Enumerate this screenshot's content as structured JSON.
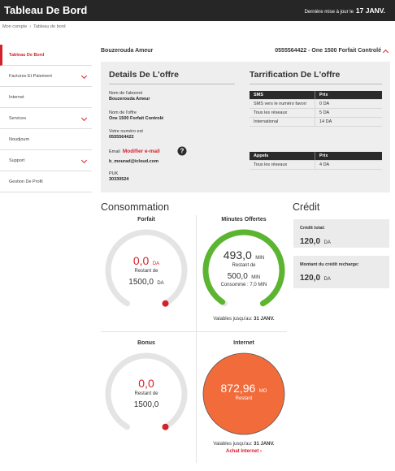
{
  "header": {
    "title": "Tableau De Bord",
    "update_label": "Dernière mise à jour le",
    "update_date": "17 JANV."
  },
  "breadcrumb": [
    "Mon compte",
    "Tableau de bord"
  ],
  "sidebar": [
    {
      "label": "Tableau De Bord",
      "active": true,
      "submenu": false
    },
    {
      "label": "Factures Et Paiement",
      "active": false,
      "submenu": true
    },
    {
      "label": "Internet",
      "active": false,
      "submenu": false
    },
    {
      "label": "Services",
      "active": false,
      "submenu": true
    },
    {
      "label": "Noudjoum",
      "active": false,
      "submenu": false
    },
    {
      "label": "Support",
      "active": false,
      "submenu": true
    },
    {
      "label": "Gestion De Profil",
      "active": false,
      "submenu": false
    }
  ],
  "account": {
    "name": "Bouzerouda Ameur",
    "line": "0555564422 - One 1500 Forfait Controlé"
  },
  "details": {
    "title": "Details De L'offre",
    "fields": [
      {
        "label": "Nom de l'abonné",
        "value": "Bouzerouda Ameur"
      },
      {
        "label": "Nom de l'offre",
        "value": "One 1500 Forfait Controlé"
      },
      {
        "label": "Votre numéro est",
        "value": "0555564422"
      }
    ],
    "email_label": "Email",
    "email_action": "Modifier e-mail",
    "email_value": "b_mourad@icloud.com",
    "puk_label": "PUK",
    "puk_value": "30330524"
  },
  "tariff": {
    "title": "Tarrification De L'offre",
    "sms": {
      "header": [
        "SMS",
        "Prix"
      ],
      "rows": [
        [
          "SMS vers le numéro favori",
          "0 DA"
        ],
        [
          "Tous les réseaux",
          "5 DA"
        ],
        [
          "International",
          "14 DA"
        ]
      ]
    },
    "calls": {
      "header": [
        "Appels",
        "Prix"
      ],
      "rows": [
        [
          "Tous les réseaux",
          "4 DA"
        ]
      ]
    }
  },
  "consumption": {
    "title": "Consommation",
    "forfait": {
      "title": "Forfait",
      "remaining": "0,0",
      "unit": "DA",
      "of_label": "Restant de",
      "total": "1500,0",
      "total_unit": "DA"
    },
    "minutes": {
      "title": "Minutes Offertes",
      "remaining": "493,0",
      "unit": "MIN",
      "of_label": "Restant de",
      "total": "500,0",
      "total_unit": "MIN",
      "consumed_label": "Consommé :",
      "consumed": "7,0",
      "consumed_unit": "MIN",
      "valid_label": "Valables jusqu'au:",
      "valid_date": "31 JANV."
    },
    "bonus": {
      "title": "Bonus",
      "remaining": "0,0",
      "of_label": "Restant de",
      "total": "1500,0"
    },
    "internet": {
      "title": "Internet",
      "remaining": "872,96",
      "unit": "MO",
      "label": "Restant",
      "valid_label": "Valables jusqu'au:",
      "valid_date": "31 JANV.",
      "action": "Achat Internet"
    }
  },
  "credit": {
    "title": "Crédit",
    "boxes": [
      {
        "label": "Crédit total:",
        "value": "120,0",
        "unit": "DA"
      },
      {
        "label": "Montant du crédit recharge:",
        "value": "120,0",
        "unit": "DA"
      }
    ]
  }
}
